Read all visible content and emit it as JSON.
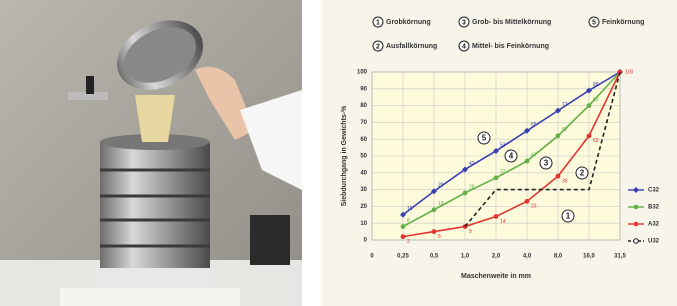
{
  "chart_data": {
    "type": "line",
    "y_label": "Siebdurchgang in Gewichts-%",
    "x_label": "Maschenweite in mm",
    "categories": [
      "0",
      "0,25",
      "0,5",
      "1,0",
      "2,0",
      "4,0",
      "8,0",
      "16,0",
      "31,5"
    ],
    "ylim": [
      0,
      100
    ],
    "yticks": [
      0,
      10,
      20,
      30,
      40,
      50,
      60,
      70,
      80,
      90,
      100
    ],
    "grid": true,
    "series": [
      {
        "name": "C32",
        "color": "#3a3fb4",
        "marker": "diamond",
        "data_labels": true,
        "values": [
          null,
          15,
          29,
          42,
          53,
          65,
          77,
          89,
          100
        ]
      },
      {
        "name": "B32",
        "color": "#62b046",
        "marker": "circle",
        "data_labels": true,
        "values": [
          null,
          8,
          18,
          28,
          37,
          47,
          62,
          80,
          100
        ]
      },
      {
        "name": "A32",
        "color": "#e3352f",
        "marker": "circle",
        "data_labels": true,
        "values": [
          null,
          2,
          5,
          8,
          14,
          23,
          38,
          62,
          100
        ]
      },
      {
        "name": "U32",
        "color": "#222222",
        "marker": "none",
        "dashed": true,
        "data_labels": false,
        "values": [
          null,
          null,
          null,
          8,
          30,
          30,
          30,
          30,
          100
        ]
      }
    ],
    "zones": [
      {
        "number": 1,
        "label": "Grobkörnung"
      },
      {
        "number": 2,
        "label": "Ausfallkörnung"
      },
      {
        "number": 3,
        "label": "Grob- bis Mittelkörnung"
      },
      {
        "number": 4,
        "label": "Mittel- bis Feinkörnung"
      },
      {
        "number": 5,
        "label": "Feinkörnung"
      }
    ]
  }
}
